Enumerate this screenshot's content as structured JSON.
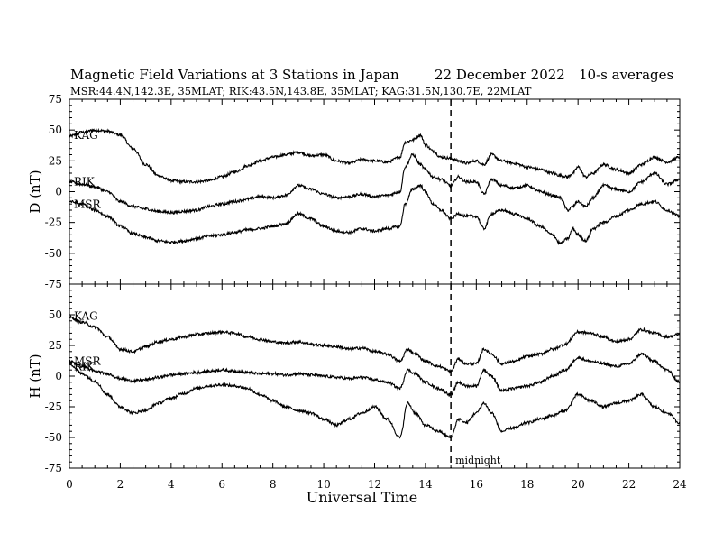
{
  "header": {
    "title": "Magnetic Field Variations at 3 Stations in Japan",
    "date": "22 December 2022",
    "averaging": "10-s averages",
    "stations": "MSR:44.4N,142.3E, 35MLAT;  RIK:43.5N,143.8E, 35MLAT;  KAG:31.5N,130.7E, 22MLAT"
  },
  "chart_data": [
    {
      "type": "line",
      "panel": "top",
      "ylabel": "D (nT)",
      "xlabel": "",
      "xlim": [
        0,
        24
      ],
      "ylim": [
        -75,
        75
      ],
      "yticks": [
        -75,
        -50,
        -25,
        0,
        25,
        50,
        75
      ],
      "xticks": [
        0,
        2,
        4,
        6,
        8,
        10,
        12,
        14,
        16,
        18,
        20,
        22,
        24
      ],
      "series": [
        {
          "name": "KAG",
          "x": [
            0,
            0.5,
            1,
            1.5,
            2,
            2.5,
            3,
            3.5,
            4,
            4.5,
            5,
            5.5,
            6,
            6.5,
            7,
            7.5,
            8,
            8.5,
            9,
            9.5,
            10,
            10.5,
            11,
            11.5,
            12,
            12.5,
            13,
            13.2,
            13.5,
            13.8,
            14,
            14.3,
            14.6,
            15,
            15.3,
            15.6,
            16,
            16.3,
            16.6,
            17,
            17.5,
            18,
            18.5,
            19,
            19.3,
            19.6,
            19.8,
            20,
            20.3,
            20.6,
            21,
            21.5,
            22,
            22.5,
            23,
            23.5,
            24
          ],
          "y": [
            45,
            48,
            50,
            49,
            46,
            35,
            22,
            13,
            9,
            8,
            8,
            9,
            12,
            16,
            21,
            25,
            28,
            30,
            32,
            29,
            30,
            25,
            23,
            26,
            25,
            24,
            28,
            40,
            42,
            46,
            38,
            33,
            28,
            27,
            25,
            23,
            25,
            22,
            30,
            25,
            23,
            20,
            18,
            15,
            13,
            12,
            15,
            20,
            12,
            15,
            22,
            18,
            15,
            22,
            28,
            24,
            28
          ]
        },
        {
          "name": "RIK",
          "x": [
            0,
            0.5,
            1,
            1.5,
            2,
            2.5,
            3,
            3.5,
            4,
            4.5,
            5,
            5.5,
            6,
            6.5,
            7,
            7.5,
            8,
            8.5,
            9,
            9.5,
            10,
            10.5,
            11,
            11.5,
            12,
            12.5,
            13,
            13.2,
            13.5,
            13.8,
            14,
            14.3,
            14.6,
            15,
            15.3,
            15.6,
            16,
            16.3,
            16.6,
            17,
            17.5,
            18,
            18.5,
            19,
            19.3,
            19.6,
            19.8,
            20,
            20.3,
            20.6,
            21,
            21.5,
            22,
            22.5,
            23,
            23.5,
            24
          ],
          "y": [
            8,
            6,
            4,
            0,
            -8,
            -12,
            -14,
            -16,
            -17,
            -16,
            -15,
            -12,
            -10,
            -8,
            -6,
            -4,
            -5,
            -3,
            5,
            2,
            -2,
            -5,
            -4,
            -2,
            -4,
            -3,
            0,
            20,
            30,
            22,
            18,
            12,
            10,
            5,
            12,
            8,
            8,
            -2,
            10,
            5,
            3,
            5,
            0,
            -3,
            -5,
            -15,
            -12,
            -8,
            -12,
            -5,
            5,
            2,
            0,
            8,
            15,
            6,
            10
          ]
        },
        {
          "name": "MSR",
          "x": [
            0,
            0.5,
            1,
            1.5,
            2,
            2.5,
            3,
            3.5,
            4,
            4.5,
            5,
            5.5,
            6,
            6.5,
            7,
            7.5,
            8,
            8.5,
            9,
            9.5,
            10,
            10.5,
            11,
            11.5,
            12,
            12.5,
            13,
            13.2,
            13.5,
            13.8,
            14,
            14.3,
            14.6,
            15,
            15.3,
            15.6,
            16,
            16.3,
            16.6,
            17,
            17.5,
            18,
            18.5,
            19,
            19.3,
            19.6,
            19.8,
            20,
            20.3,
            20.6,
            21,
            21.5,
            22,
            22.5,
            23,
            23.5,
            24
          ],
          "y": [
            -8,
            -10,
            -15,
            -20,
            -28,
            -34,
            -37,
            -40,
            -41,
            -40,
            -38,
            -36,
            -35,
            -33,
            -31,
            -30,
            -28,
            -26,
            -18,
            -22,
            -28,
            -32,
            -33,
            -30,
            -32,
            -30,
            -28,
            -10,
            2,
            5,
            0,
            -10,
            -15,
            -22,
            -18,
            -20,
            -20,
            -30,
            -18,
            -15,
            -18,
            -22,
            -28,
            -35,
            -42,
            -38,
            -30,
            -35,
            -40,
            -30,
            -25,
            -20,
            -15,
            -10,
            -8,
            -15,
            -20
          ]
        }
      ],
      "labels": [
        "KAG",
        "RIK",
        "MSR"
      ]
    },
    {
      "type": "line",
      "panel": "bottom",
      "ylabel": "H (nT)",
      "xlabel": "Universal Time",
      "xlim": [
        0,
        24
      ],
      "ylim": [
        -75,
        75
      ],
      "yticks": [
        -75,
        -50,
        -25,
        0,
        25,
        50,
        75
      ],
      "xticks": [
        0,
        2,
        4,
        6,
        8,
        10,
        12,
        14,
        16,
        18,
        20,
        22,
        24
      ],
      "series": [
        {
          "name": "KAG",
          "x": [
            0,
            0.5,
            1,
            1.5,
            2,
            2.5,
            3,
            3.5,
            4,
            4.5,
            5,
            5.5,
            6,
            6.5,
            7,
            7.5,
            8,
            8.5,
            9,
            9.5,
            10,
            10.5,
            11,
            11.5,
            12,
            12.5,
            13,
            13.3,
            13.6,
            14,
            14.5,
            15,
            15.3,
            15.6,
            16,
            16.3,
            16.6,
            17,
            17.5,
            18,
            18.5,
            19,
            19.5,
            20,
            20.5,
            21,
            21.5,
            22,
            22.5,
            23,
            23.5,
            24
          ],
          "y": [
            48,
            44,
            40,
            32,
            22,
            20,
            24,
            28,
            30,
            32,
            34,
            35,
            36,
            35,
            32,
            30,
            28,
            27,
            28,
            26,
            25,
            24,
            22,
            23,
            20,
            18,
            12,
            22,
            18,
            12,
            8,
            4,
            14,
            10,
            10,
            22,
            18,
            10,
            12,
            16,
            18,
            22,
            26,
            36,
            35,
            32,
            28,
            30,
            38,
            35,
            32,
            34
          ]
        },
        {
          "name": "MSR",
          "x": [
            0,
            0.5,
            1,
            1.5,
            2,
            2.5,
            3,
            3.5,
            4,
            4.5,
            5,
            5.5,
            6,
            6.5,
            7,
            7.5,
            8,
            8.5,
            9,
            9.5,
            10,
            10.5,
            11,
            11.5,
            12,
            12.5,
            13,
            13.3,
            13.6,
            14,
            14.5,
            15,
            15.3,
            15.6,
            16,
            16.3,
            16.6,
            17,
            17.5,
            18,
            18.5,
            19,
            19.5,
            20,
            20.5,
            21,
            21.5,
            22,
            22.5,
            23,
            23.5,
            24
          ],
          "y": [
            12,
            8,
            4,
            2,
            -2,
            -4,
            -3,
            -1,
            1,
            2,
            3,
            4,
            5,
            4,
            3,
            2,
            2,
            1,
            2,
            1,
            0,
            -1,
            -2,
            -1,
            -3,
            -5,
            -10,
            5,
            2,
            -5,
            -10,
            -15,
            -5,
            -8,
            -8,
            5,
            0,
            -12,
            -10,
            -8,
            -5,
            0,
            5,
            15,
            12,
            10,
            8,
            10,
            18,
            12,
            5,
            -5
          ]
        },
        {
          "name": "RIK",
          "x": [
            0,
            0.5,
            1,
            1.5,
            2,
            2.5,
            3,
            3.5,
            4,
            4.5,
            5,
            5.5,
            6,
            6.5,
            7,
            7.5,
            8,
            8.5,
            9,
            9.5,
            10,
            10.5,
            11,
            11.5,
            12,
            12.5,
            13,
            13.3,
            13.6,
            14,
            14.5,
            15,
            15.3,
            15.6,
            16,
            16.3,
            16.6,
            17,
            17.5,
            18,
            18.5,
            19,
            19.5,
            20,
            20.5,
            21,
            21.5,
            22,
            22.5,
            23,
            23.5,
            24
          ],
          "y": [
            10,
            2,
            -4,
            -15,
            -25,
            -30,
            -28,
            -22,
            -18,
            -14,
            -10,
            -8,
            -7,
            -8,
            -10,
            -15,
            -20,
            -25,
            -28,
            -30,
            -35,
            -40,
            -35,
            -30,
            -25,
            -35,
            -50,
            -22,
            -30,
            -40,
            -45,
            -50,
            -35,
            -38,
            -30,
            -22,
            -30,
            -45,
            -42,
            -38,
            -35,
            -32,
            -28,
            -15,
            -20,
            -25,
            -22,
            -20,
            -15,
            -25,
            -30,
            -38
          ]
        }
      ],
      "labels": [
        "KAG",
        "MSR",
        "RIK"
      ]
    }
  ],
  "annotations": {
    "midnight": "midnight",
    "midnight_ut": 15
  }
}
